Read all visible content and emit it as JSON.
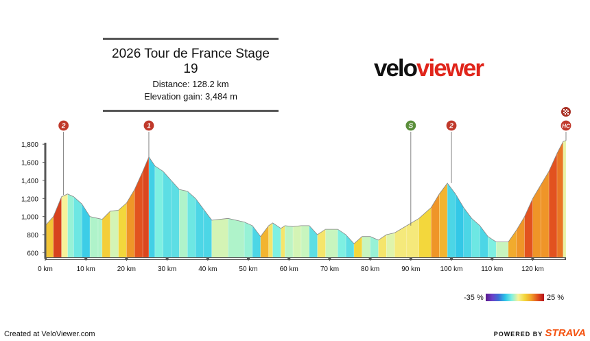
{
  "header": {
    "title": "2026 Tour de France Stage 19",
    "distance": "Distance: 128.2 km",
    "elevation": "Elevation gain: 3,484 m"
  },
  "logo": {
    "part1": "velo",
    "part2": "viewer"
  },
  "legend": {
    "min_label": "-35 %",
    "max_label": "25 %"
  },
  "footer": {
    "created": "Created at VeloViewer.com",
    "powered": "POWERED BY",
    "brand": "STRAVA"
  },
  "colors": {
    "brand_red": "#e0251b",
    "strava_orange": "#f45311",
    "marker_red": "#c0392b",
    "marker_green": "#5a8e3a"
  },
  "chart_data": {
    "type": "area",
    "x_unit": "km",
    "xlim": [
      0,
      128.2
    ],
    "ylim": [
      550,
      1900
    ],
    "x_ticks": [
      0,
      10,
      20,
      30,
      40,
      50,
      60,
      70,
      80,
      90,
      100,
      110,
      120
    ],
    "x_tick_labels": [
      "0 km",
      "10 km",
      "20 km",
      "30 km",
      "40 km",
      "50 km",
      "60 km",
      "70 km",
      "80 km",
      "90 km",
      "100 km",
      "110 km",
      "120 km"
    ],
    "y_ticks": [
      600,
      800,
      1000,
      1200,
      1400,
      1600,
      1800
    ],
    "y_tick_labels": [
      "600",
      "800",
      "1,000",
      "1,200",
      "1,400",
      "1,600",
      "1,800"
    ],
    "profile": [
      [
        0,
        900
      ],
      [
        2,
        1000
      ],
      [
        4,
        1220
      ],
      [
        5.5,
        1250
      ],
      [
        7,
        1220
      ],
      [
        9,
        1140
      ],
      [
        11,
        1000
      ],
      [
        13,
        980
      ],
      [
        14,
        970
      ],
      [
        16,
        1060
      ],
      [
        18,
        1070
      ],
      [
        20,
        1150
      ],
      [
        22,
        1300
      ],
      [
        24,
        1500
      ],
      [
        25.5,
        1660
      ],
      [
        27,
        1560
      ],
      [
        29,
        1500
      ],
      [
        31,
        1400
      ],
      [
        33,
        1300
      ],
      [
        35,
        1280
      ],
      [
        37,
        1200
      ],
      [
        39,
        1080
      ],
      [
        41,
        960
      ],
      [
        45,
        980
      ],
      [
        49,
        940
      ],
      [
        51,
        900
      ],
      [
        53,
        780
      ],
      [
        55,
        900
      ],
      [
        56,
        930
      ],
      [
        58,
        870
      ],
      [
        59,
        900
      ],
      [
        61,
        890
      ],
      [
        63,
        900
      ],
      [
        65,
        900
      ],
      [
        67,
        800
      ],
      [
        69,
        860
      ],
      [
        72,
        860
      ],
      [
        74,
        800
      ],
      [
        76,
        700
      ],
      [
        78,
        780
      ],
      [
        80,
        780
      ],
      [
        82,
        740
      ],
      [
        84,
        800
      ],
      [
        86,
        820
      ],
      [
        89,
        900
      ],
      [
        92,
        980
      ],
      [
        95,
        1100
      ],
      [
        97,
        1250
      ],
      [
        99,
        1370
      ],
      [
        101,
        1250
      ],
      [
        103,
        1100
      ],
      [
        105,
        980
      ],
      [
        107,
        900
      ],
      [
        109,
        780
      ],
      [
        111,
        720
      ],
      [
        114,
        720
      ],
      [
        116,
        850
      ],
      [
        118,
        1000
      ],
      [
        120,
        1200
      ],
      [
        122,
        1350
      ],
      [
        124,
        1500
      ],
      [
        126,
        1700
      ],
      [
        127.5,
        1830
      ],
      [
        128.2,
        1840
      ]
    ],
    "markers": [
      {
        "km": 4.5,
        "elev": 1240,
        "label": "2",
        "kind": "climb"
      },
      {
        "km": 25.5,
        "elev": 1660,
        "label": "1",
        "kind": "climb"
      },
      {
        "km": 90,
        "elev": 900,
        "label": "S",
        "kind": "sprint"
      },
      {
        "km": 100,
        "elev": 1370,
        "label": "2",
        "kind": "climb"
      },
      {
        "km": 128.2,
        "elev": 1840,
        "label": "HC",
        "kind": "climb"
      }
    ]
  }
}
